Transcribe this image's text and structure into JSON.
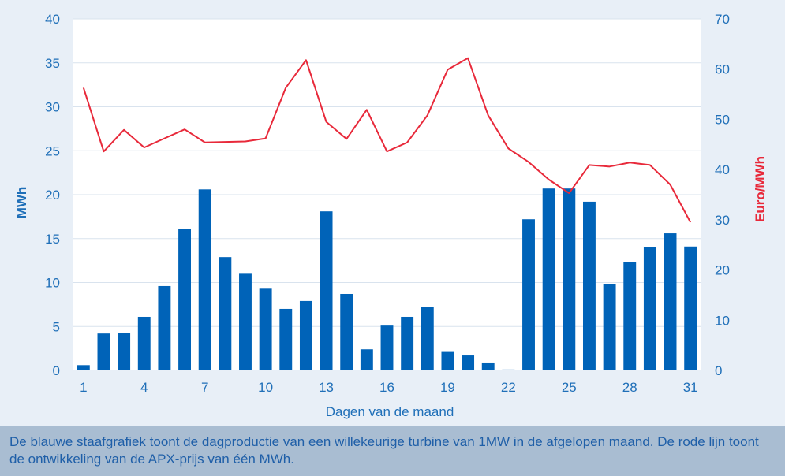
{
  "caption": "De blauwe staafgrafiek toont de dagproductie van een willekeurige turbine van 1MW in de afgelopen maand. De rode lijn toont de ontwikkeling van de APX-prijs van één MWh.",
  "colors": {
    "bars": "#0063b8",
    "line": "#e8293a",
    "left_axis_text": "#1f6fb8",
    "right_axis_text": "#e8293a",
    "plot_background": "#ffffff",
    "page_background": "#e8eff7",
    "caption_background": "#a9bdd2"
  },
  "chart_data": {
    "type": "bar",
    "xlabel": "Dagen van de maand",
    "ylabel": "MWh",
    "y2label": "Euro/MWh",
    "ylim": [
      0,
      40
    ],
    "y2lim": [
      0,
      70
    ],
    "yticks": [
      0,
      5,
      10,
      15,
      20,
      25,
      30,
      35,
      40
    ],
    "y2ticks": [
      0,
      10,
      20,
      30,
      40,
      50,
      60,
      70
    ],
    "xticks": [
      1,
      4,
      7,
      10,
      13,
      16,
      19,
      22,
      25,
      28,
      31
    ],
    "grid": true,
    "x": [
      1,
      2,
      3,
      4,
      5,
      6,
      7,
      8,
      9,
      10,
      11,
      12,
      13,
      14,
      15,
      16,
      17,
      18,
      19,
      20,
      21,
      22,
      23,
      24,
      25,
      26,
      27,
      28,
      29,
      30,
      31
    ],
    "series": [
      {
        "type": "bar",
        "axis": "left",
        "values": [
          0.6,
          4.2,
          4.3,
          6.1,
          9.6,
          16.1,
          20.6,
          12.9,
          11.0,
          9.3,
          7.0,
          7.9,
          18.1,
          8.7,
          2.4,
          5.1,
          6.1,
          7.2,
          2.1,
          1.7,
          0.9,
          0.1,
          17.2,
          20.7,
          20.7,
          19.2,
          9.8,
          12.3,
          14.0,
          15.6,
          14.1
        ]
      },
      {
        "type": "line",
        "axis": "right",
        "values": [
          56.3,
          43.6,
          47.9,
          44.4,
          46.2,
          48.0,
          45.4,
          45.5,
          45.6,
          46.2,
          56.3,
          61.8,
          49.5,
          46.1,
          51.9,
          43.6,
          45.4,
          50.8,
          59.9,
          62.2,
          50.8,
          44.2,
          41.5,
          38.0,
          35.3,
          40.9,
          40.6,
          41.4,
          40.9,
          37.0,
          29.5
        ]
      }
    ]
  }
}
